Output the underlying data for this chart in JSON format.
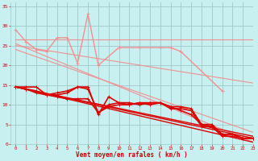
{
  "xlabel": "Vent moyen/en rafales ( km/h )",
  "bg_color": "#c8f0f0",
  "grid_color": "#a0c8c8",
  "label_color": "#cc0000",
  "xlim": [
    -0.5,
    23
  ],
  "ylim": [
    0,
    36
  ],
  "xticks": [
    0,
    1,
    2,
    3,
    4,
    5,
    6,
    7,
    8,
    9,
    10,
    11,
    12,
    13,
    14,
    15,
    16,
    17,
    18,
    19,
    20,
    21,
    22,
    23
  ],
  "yticks": [
    0,
    5,
    10,
    15,
    20,
    25,
    30,
    35
  ],
  "diag_lines": [
    {
      "x": [
        0,
        23
      ],
      "y": [
        26.5,
        26.5
      ],
      "color": "#f09090",
      "lw": 0.8
    },
    {
      "x": [
        0,
        23
      ],
      "y": [
        25.0,
        15.5
      ],
      "color": "#f09090",
      "lw": 0.8
    },
    {
      "x": [
        0,
        23
      ],
      "y": [
        24.0,
        3.0
      ],
      "color": "#f09090",
      "lw": 0.8
    },
    {
      "x": [
        0,
        23
      ],
      "y": [
        25.5,
        0.5
      ],
      "color": "#f09090",
      "lw": 0.8
    }
  ],
  "pink_jagged": {
    "x": [
      0,
      1,
      2,
      3,
      4,
      5,
      6,
      7,
      8,
      10,
      12,
      14,
      15,
      16,
      20
    ],
    "y": [
      29.0,
      26.0,
      24.0,
      23.5,
      27.0,
      27.0,
      20.5,
      33.0,
      20.0,
      24.5,
      24.5,
      24.5,
      24.5,
      23.5,
      13.5
    ],
    "color": "#f09090",
    "lw": 1.0,
    "marker": "+"
  },
  "dark_lines": [
    {
      "x": [
        0,
        1,
        2,
        3,
        4,
        5,
        6,
        7,
        8,
        9,
        10,
        11,
        12,
        13,
        14,
        15,
        16,
        17,
        18,
        19,
        20,
        21,
        22,
        23
      ],
      "y": [
        14.5,
        14.5,
        14.5,
        12.5,
        12.5,
        13.0,
        14.5,
        14.5,
        7.5,
        12.0,
        10.5,
        10.0,
        10.5,
        10.5,
        10.5,
        9.5,
        9.5,
        9.0,
        5.0,
        5.0,
        2.5,
        2.5,
        1.5,
        1.5
      ],
      "color": "#dd0000",
      "lw": 1.2,
      "marker": "+"
    },
    {
      "x": [
        0,
        1,
        2,
        3,
        4,
        5,
        6,
        7,
        8,
        9,
        10,
        11,
        12,
        13,
        14,
        15,
        16,
        17,
        18,
        19,
        20,
        21,
        22,
        23
      ],
      "y": [
        14.5,
        14.0,
        13.0,
        12.5,
        12.0,
        11.5,
        11.5,
        11.5,
        8.0,
        9.5,
        10.0,
        10.0,
        10.5,
        10.0,
        10.5,
        9.5,
        8.5,
        7.5,
        5.0,
        4.5,
        2.5,
        2.5,
        1.5,
        1.5
      ],
      "color": "#dd0000",
      "lw": 1.2,
      "marker": "+"
    },
    {
      "x": [
        0,
        1,
        2,
        3,
        4,
        5,
        6,
        7,
        8,
        9,
        10,
        11,
        12,
        13,
        14,
        15,
        16,
        17,
        18,
        19,
        20,
        21,
        22,
        23
      ],
      "y": [
        14.5,
        14.0,
        13.5,
        12.5,
        13.0,
        13.5,
        14.5,
        14.0,
        8.0,
        10.0,
        10.5,
        10.5,
        10.0,
        10.5,
        10.5,
        9.0,
        9.0,
        8.5,
        4.5,
        4.5,
        2.0,
        2.0,
        1.5,
        1.5
      ],
      "color": "#dd0000",
      "lw": 1.2,
      "marker": "+"
    }
  ],
  "diag_dark_lines": [
    {
      "x": [
        0,
        23
      ],
      "y": [
        14.5,
        1.5
      ],
      "color": "#dd0000",
      "lw": 1.0
    },
    {
      "x": [
        0,
        23
      ],
      "y": [
        14.5,
        0.5
      ],
      "color": "#dd0000",
      "lw": 1.0
    },
    {
      "x": [
        0,
        23
      ],
      "y": [
        14.5,
        2.0
      ],
      "color": "#dd0000",
      "lw": 1.0
    }
  ]
}
